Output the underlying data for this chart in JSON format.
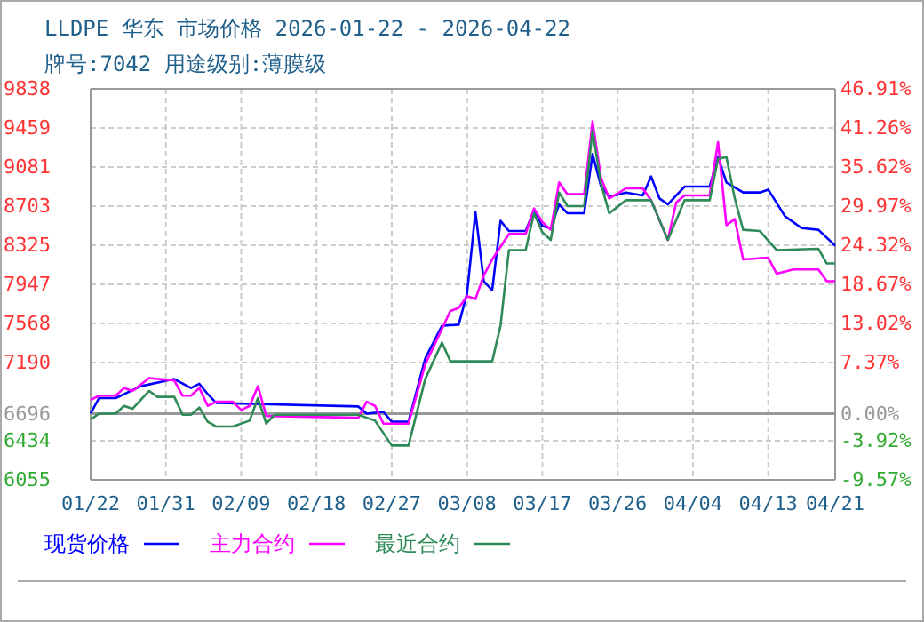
{
  "chart_data": {
    "type": "line",
    "title": "LLDPE 华东 市场价格 2026-01-22 - 2026-04-22",
    "subtitle": "牌号:7042 用途级别:薄膜级",
    "xlim": [
      "2026-01-22",
      "2026-04-21"
    ],
    "xticks": [
      {
        "value": "2026-01-22",
        "label": "01/22"
      },
      {
        "value": "2026-01-31",
        "label": "01/31"
      },
      {
        "value": "2026-02-09",
        "label": "02/09"
      },
      {
        "value": "2026-02-18",
        "label": "02/18"
      },
      {
        "value": "2026-02-27",
        "label": "02/27"
      },
      {
        "value": "2026-03-08",
        "label": "03/08"
      },
      {
        "value": "2026-03-17",
        "label": "03/17"
      },
      {
        "value": "2026-03-26",
        "label": "03/26"
      },
      {
        "value": "2026-04-04",
        "label": "04/04"
      },
      {
        "value": "2026-04-13",
        "label": "04/13"
      },
      {
        "value": "2026-04-21",
        "label": "04/21"
      }
    ],
    "ylim": [
      6055,
      9838
    ],
    "yticks": [
      6055,
      6434,
      6696,
      7190,
      7568,
      7947,
      8325,
      8703,
      9081,
      9459,
      9838
    ],
    "y2lim": [
      -9.57,
      46.91
    ],
    "y2ticks": [
      {
        "value": -9.57,
        "label": "-9.57%"
      },
      {
        "value": -3.92,
        "label": "-3.92%"
      },
      {
        "value": 0,
        "label": "0.00%"
      },
      {
        "value": 7.37,
        "label": "7.37%"
      },
      {
        "value": 13.02,
        "label": "13.02%"
      },
      {
        "value": 18.67,
        "label": "18.67%"
      },
      {
        "value": 24.32,
        "label": "24.32%"
      },
      {
        "value": 29.97,
        "label": "29.97%"
      },
      {
        "value": 35.62,
        "label": "35.62%"
      },
      {
        "value": 41.26,
        "label": "41.26%"
      },
      {
        "value": 46.91,
        "label": "46.91%"
      }
    ],
    "ref_lines": [
      {
        "axis": "y",
        "value": 6696,
        "color": "#999999"
      }
    ],
    "grid": true,
    "legend": "bottom",
    "marker": "none",
    "line_style": "solid",
    "series": [
      {
        "name": "现货价格",
        "color": "#0000ff",
        "x": [
          "2026-01-22",
          "2026-01-23",
          "2026-01-25",
          "2026-01-28",
          "2026-02-01",
          "2026-02-03",
          "2026-02-04",
          "2026-02-05",
          "2026-02-06",
          "2026-02-23",
          "2026-02-24",
          "2026-02-26",
          "2026-02-27",
          "2026-03-01",
          "2026-03-03",
          "2026-03-05",
          "2026-03-07",
          "2026-03-08",
          "2026-03-09",
          "2026-03-10",
          "2026-03-11",
          "2026-03-12",
          "2026-03-13",
          "2026-03-15",
          "2026-03-16",
          "2026-03-17",
          "2026-03-18",
          "2026-03-19",
          "2026-03-20",
          "2026-03-22",
          "2026-03-23",
          "2026-03-24",
          "2026-03-25",
          "2026-03-27",
          "2026-03-29",
          "2026-03-30",
          "2026-03-31",
          "2026-04-01",
          "2026-04-03",
          "2026-04-06",
          "2026-04-07",
          "2026-04-08",
          "2026-04-10",
          "2026-04-12",
          "2026-04-13",
          "2026-04-15",
          "2026-04-17",
          "2026-04-19",
          "2026-04-21"
        ],
        "values": [
          6696,
          6846,
          6846,
          6961,
          7030,
          6944,
          6984,
          6885,
          6799,
          6765,
          6696,
          6713,
          6617,
          6617,
          7230,
          7546,
          7556,
          7860,
          8646,
          7976,
          7890,
          8560,
          8462,
          8462,
          8663,
          8509,
          8490,
          8720,
          8634,
          8634,
          9207,
          8900,
          8794,
          8835,
          8806,
          8990,
          8777,
          8720,
          8892,
          8892,
          9178,
          8932,
          8835,
          8835,
          8863,
          8605,
          8490,
          8474,
          8320
        ]
      },
      {
        "name": "主力合约",
        "color": "#ff00ff",
        "x": [
          "2026-01-22",
          "2026-01-23",
          "2026-01-25",
          "2026-01-26",
          "2026-01-27",
          "2026-01-29",
          "2026-02-01",
          "2026-02-02",
          "2026-02-03",
          "2026-02-04",
          "2026-02-05",
          "2026-02-06",
          "2026-02-08",
          "2026-02-09",
          "2026-02-10",
          "2026-02-11",
          "2026-02-12",
          "2026-02-23",
          "2026-02-24",
          "2026-02-25",
          "2026-02-26",
          "2026-03-01",
          "2026-03-03",
          "2026-03-06",
          "2026-03-07",
          "2026-03-08",
          "2026-03-09",
          "2026-03-10",
          "2026-03-11",
          "2026-03-13",
          "2026-03-15",
          "2026-03-16",
          "2026-03-17",
          "2026-03-18",
          "2026-03-19",
          "2026-03-20",
          "2026-03-22",
          "2026-03-23",
          "2026-03-24",
          "2026-03-25",
          "2026-03-27",
          "2026-03-29",
          "2026-03-30",
          "2026-04-01",
          "2026-04-02",
          "2026-04-03",
          "2026-04-06",
          "2026-04-07",
          "2026-04-08",
          "2026-04-09",
          "2026-04-10",
          "2026-04-13",
          "2026-04-14",
          "2026-04-16",
          "2026-04-19",
          "2026-04-20",
          "2026-04-21"
        ],
        "values": [
          6829,
          6869,
          6869,
          6944,
          6915,
          7040,
          7017,
          6869,
          6869,
          6944,
          6771,
          6811,
          6811,
          6731,
          6771,
          6961,
          6673,
          6656,
          6811,
          6771,
          6599,
          6599,
          7172,
          7688,
          7718,
          7832,
          7804,
          8033,
          8187,
          8433,
          8433,
          8680,
          8548,
          8474,
          8932,
          8818,
          8818,
          9523,
          8978,
          8777,
          8875,
          8875,
          8760,
          8376,
          8738,
          8806,
          8806,
          9322,
          8519,
          8577,
          8187,
          8204,
          8050,
          8090,
          8090,
          7976,
          7976
        ]
      },
      {
        "name": "最近合约",
        "color": "#2e8b57",
        "x": [
          "2026-01-22",
          "2026-01-23",
          "2026-01-25",
          "2026-01-26",
          "2026-01-27",
          "2026-01-29",
          "2026-01-30",
          "2026-02-01",
          "2026-02-02",
          "2026-02-03",
          "2026-02-04",
          "2026-02-05",
          "2026-02-06",
          "2026-02-08",
          "2026-02-10",
          "2026-02-11",
          "2026-02-12",
          "2026-02-13",
          "2026-02-23",
          "2026-02-25",
          "2026-02-27",
          "2026-03-01",
          "2026-03-03",
          "2026-03-05",
          "2026-03-06",
          "2026-03-11",
          "2026-03-12",
          "2026-03-13",
          "2026-03-15",
          "2026-03-16",
          "2026-03-17",
          "2026-03-18",
          "2026-03-19",
          "2026-03-20",
          "2026-03-22",
          "2026-03-23",
          "2026-03-24",
          "2026-03-25",
          "2026-03-27",
          "2026-03-30",
          "2026-04-01",
          "2026-04-03",
          "2026-04-06",
          "2026-04-07",
          "2026-04-08",
          "2026-04-09",
          "2026-04-10",
          "2026-04-12",
          "2026-04-14",
          "2026-04-19",
          "2026-04-20",
          "2026-04-21"
        ],
        "values": [
          6639,
          6696,
          6696,
          6771,
          6742,
          6915,
          6858,
          6858,
          6685,
          6685,
          6754,
          6617,
          6571,
          6571,
          6628,
          6846,
          6599,
          6685,
          6685,
          6628,
          6387,
          6387,
          7030,
          7384,
          7202,
          7202,
          7546,
          8278,
          8278,
          8634,
          8450,
          8376,
          8835,
          8703,
          8703,
          9437,
          8921,
          8634,
          8760,
          8760,
          8376,
          8760,
          8760,
          9161,
          9178,
          8777,
          8474,
          8462,
          8278,
          8290,
          8148,
          8148
        ]
      }
    ]
  }
}
